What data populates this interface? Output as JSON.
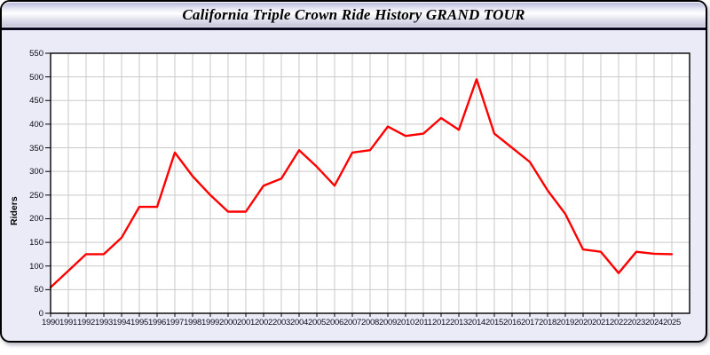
{
  "window": {
    "title": "California Triple Crown Ride History GRAND TOUR"
  },
  "chart_data": {
    "type": "line",
    "title": "California Triple Crown Ride History GRAND TOUR",
    "xlabel": "",
    "ylabel": "Riders",
    "ylim": [
      0,
      550
    ],
    "ystep": 50,
    "grid": true,
    "legend_position": "none",
    "categories": [
      1990,
      1991,
      1992,
      1993,
      1994,
      1995,
      1996,
      1997,
      1998,
      1999,
      2000,
      2001,
      2002,
      2003,
      2004,
      2005,
      2006,
      2007,
      2008,
      2009,
      2010,
      2011,
      2012,
      2013,
      2014,
      2015,
      2016,
      2017,
      2018,
      2019,
      2020,
      2021,
      2022,
      2023,
      2024,
      2025
    ],
    "series": [
      {
        "name": "Riders",
        "values": [
          55,
          90,
          125,
          125,
          160,
          225,
          225,
          340,
          290,
          250,
          215,
          215,
          270,
          285,
          345,
          310,
          270,
          340,
          345,
          395,
          375,
          380,
          413,
          388,
          495,
          380,
          350,
          320,
          260,
          210,
          135,
          130,
          85,
          130,
          126,
          125
        ]
      }
    ],
    "colors": {
      "line": "#ff0000",
      "plot_background": "#ffffff",
      "panel_background": "#ebebf8",
      "gridline": "#c9c9c9",
      "frame": "#000000"
    }
  }
}
